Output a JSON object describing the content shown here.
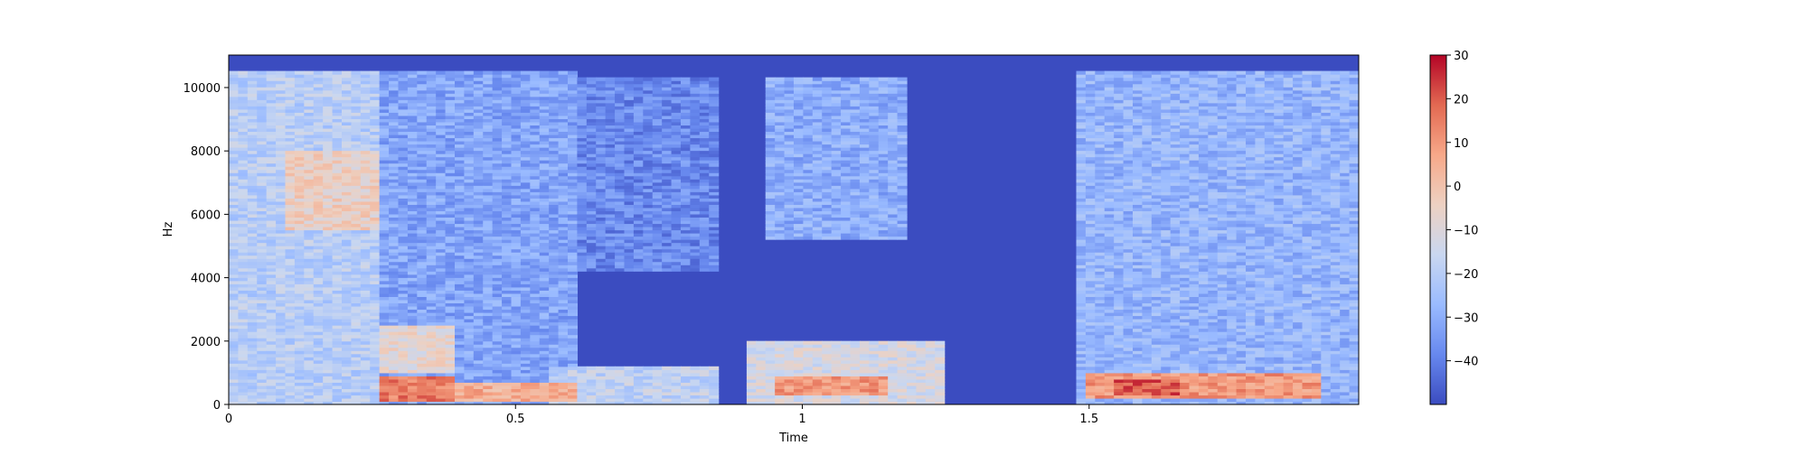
{
  "chart_data": {
    "type": "heatmap",
    "kind": "spectrogram",
    "colormap": "coolwarm",
    "grid": false,
    "legend": "none",
    "xlabel": "Time",
    "ylabel": "Hz",
    "xlim": [
      0,
      1.97
    ],
    "ylim": [
      0,
      11025
    ],
    "x_ticks": [
      0,
      0.5,
      1,
      1.5
    ],
    "x_tick_labels": [
      "0",
      "0.5",
      "1",
      "1.5"
    ],
    "y_ticks": [
      0,
      2000,
      4000,
      6000,
      8000,
      10000
    ],
    "y_tick_labels": [
      "0",
      "2000",
      "4000",
      "6000",
      "8000",
      "10000"
    ],
    "colorbar": {
      "range": [
        -50,
        30
      ],
      "ticks": [
        30,
        20,
        10,
        0,
        -10,
        -20,
        -30,
        -40
      ],
      "tick_labels": [
        "30",
        "20",
        "10",
        "0",
        "−10",
        "−20",
        "−30",
        "−40"
      ],
      "colors": [
        "#3b4cc0",
        "#6788ee",
        "#9abbff",
        "#c9d7f0",
        "#edd1c2",
        "#f7a889",
        "#e26952",
        "#b40426"
      ]
    },
    "approx_regions_db": [
      {
        "time": [
          0.0,
          0.26
        ],
        "hz": [
          0,
          10500
        ],
        "db": -20
      },
      {
        "time": [
          0.1,
          0.26
        ],
        "hz": [
          5500,
          8000
        ],
        "db": -5
      },
      {
        "time": [
          0.26,
          0.6
        ],
        "hz": [
          0,
          10500
        ],
        "db": -32
      },
      {
        "time": [
          0.26,
          0.4
        ],
        "hz": [
          1000,
          2500
        ],
        "db": -8
      },
      {
        "time": [
          0.26,
          0.4
        ],
        "hz": [
          100,
          900
        ],
        "db": 15
      },
      {
        "time": [
          0.4,
          0.6
        ],
        "hz": [
          100,
          700
        ],
        "db": 5
      },
      {
        "time": [
          0.55,
          0.85
        ],
        "hz": [
          4200,
          10300
        ],
        "db": -38
      },
      {
        "time": [
          0.55,
          0.85
        ],
        "hz": [
          0,
          1200
        ],
        "db": -18
      },
      {
        "time": [
          0.85,
          0.93
        ],
        "hz": [
          5000,
          10500
        ],
        "db": -50
      },
      {
        "time": [
          0.93,
          1.18
        ],
        "hz": [
          5200,
          10300
        ],
        "db": -30
      },
      {
        "time": [
          0.9,
          1.25
        ],
        "hz": [
          0,
          2000
        ],
        "db": -12
      },
      {
        "time": [
          0.95,
          1.15
        ],
        "hz": [
          300,
          900
        ],
        "db": 10
      },
      {
        "time": [
          1.2,
          1.47
        ],
        "hz": [
          0,
          11025
        ],
        "db": -50
      },
      {
        "time": [
          1.47,
          1.97
        ],
        "hz": [
          0,
          10500
        ],
        "db": -28
      },
      {
        "time": [
          1.5,
          1.9
        ],
        "hz": [
          200,
          1000
        ],
        "db": 10
      },
      {
        "time": [
          1.55,
          1.65
        ],
        "hz": [
          300,
          800
        ],
        "db": 20
      }
    ]
  }
}
